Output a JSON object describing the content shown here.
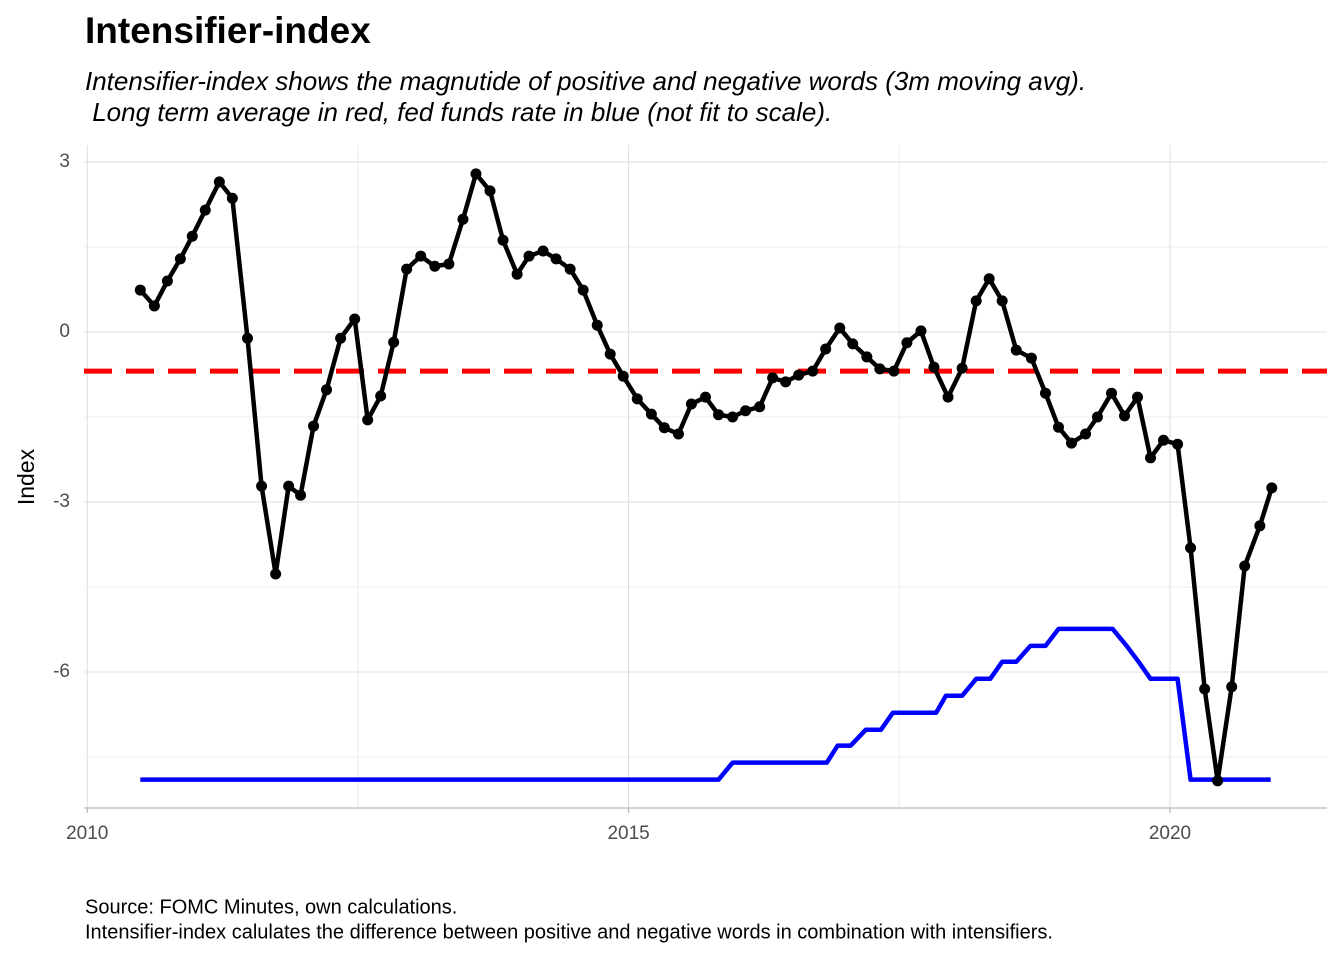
{
  "chart_data": {
    "type": "line",
    "title": "Intensifier-index",
    "subtitle": [
      "Intensifier-index shows the magnutide of positive and negative words (3m moving avg).",
      " Long term average in red, fed funds rate in blue (not fit to scale)."
    ],
    "y_label": "Index",
    "caption": [
      "Source: FOMC Minutes, own calculations.",
      "Intensifier-index calulates the difference between positive and negative words in combination with intensifiers."
    ],
    "xlim": [
      2009.97,
      2021.45
    ],
    "xticks": [
      2010,
      2015,
      2020
    ],
    "ylim": [
      -8.4,
      3.3
    ],
    "yticks": [
      -6,
      -3,
      0,
      3
    ],
    "grid": true,
    "hline": {
      "value": -0.69,
      "color": "#ff0000"
    },
    "series": [
      {
        "color": "#000000",
        "points": true,
        "x": [
          2010.49,
          2010.62,
          2010.74,
          2010.86,
          2010.97,
          2011.09,
          2011.22,
          2011.34,
          2011.48,
          2011.61,
          2011.74,
          2011.86,
          2011.97,
          2012.09,
          2012.21,
          2012.34,
          2012.47,
          2012.59,
          2012.71,
          2012.83,
          2012.95,
          2013.08,
          2013.21,
          2013.34,
          2013.47,
          2013.59,
          2013.72,
          2013.84,
          2013.97,
          2014.08,
          2014.21,
          2014.33,
          2014.46,
          2014.58,
          2014.71,
          2014.83,
          2014.95,
          2015.08,
          2015.21,
          2015.33,
          2015.46,
          2015.58,
          2015.71,
          2015.83,
          2015.96,
          2016.08,
          2016.21,
          2016.33,
          2016.45,
          2016.57,
          2016.7,
          2016.82,
          2016.95,
          2017.07,
          2017.2,
          2017.32,
          2017.45,
          2017.57,
          2017.7,
          2017.82,
          2017.95,
          2018.08,
          2018.21,
          2018.33,
          2018.45,
          2018.58,
          2018.72,
          2018.85,
          2018.97,
          2019.09,
          2019.22,
          2019.33,
          2019.46,
          2019.58,
          2019.7,
          2019.82,
          2019.94,
          2020.07,
          2020.19,
          2020.32,
          2020.44,
          2020.57,
          2020.69,
          2020.83,
          2020.94
        ],
        "values": [
          0.74,
          0.46,
          0.9,
          1.29,
          1.69,
          2.15,
          2.65,
          2.36,
          -0.11,
          -2.72,
          -4.27,
          -2.72,
          -2.88,
          -1.66,
          -1.02,
          -0.11,
          0.23,
          -1.55,
          -1.13,
          -0.18,
          1.11,
          1.34,
          1.16,
          1.2,
          1.99,
          2.79,
          2.49,
          1.62,
          1.02,
          1.34,
          1.43,
          1.29,
          1.11,
          0.74,
          0.12,
          -0.39,
          -0.78,
          -1.18,
          -1.45,
          -1.69,
          -1.8,
          -1.27,
          -1.15,
          -1.46,
          -1.5,
          -1.39,
          -1.32,
          -0.81,
          -0.88,
          -0.76,
          -0.69,
          -0.3,
          0.07,
          -0.21,
          -0.44,
          -0.65,
          -0.69,
          -0.19,
          0.02,
          -0.62,
          -1.15,
          -0.64,
          0.55,
          0.94,
          0.55,
          -0.32,
          -0.46,
          -1.08,
          -1.68,
          -1.96,
          -1.8,
          -1.5,
          -1.08,
          -1.48,
          -1.15,
          -2.22,
          -1.91,
          -1.98,
          -3.81,
          -6.3,
          -7.92,
          -6.26,
          -4.13,
          -3.42,
          -2.75
        ]
      },
      {
        "color": "#0000ff",
        "points": false,
        "x": [
          2010.49,
          2015.83,
          2015.96,
          2016.83,
          2016.93,
          2017.05,
          2017.19,
          2017.33,
          2017.44,
          2017.84,
          2017.93,
          2018.08,
          2018.21,
          2018.34,
          2018.45,
          2018.58,
          2018.71,
          2018.85,
          2018.97,
          2019.47,
          2019.6,
          2019.71,
          2019.82,
          2020.07,
          2020.19,
          2020.93
        ],
        "values": [
          -7.9,
          -7.9,
          -7.6,
          -7.6,
          -7.3,
          -7.3,
          -7.02,
          -7.02,
          -6.72,
          -6.72,
          -6.42,
          -6.42,
          -6.12,
          -6.12,
          -5.82,
          -5.82,
          -5.54,
          -5.54,
          -5.24,
          -5.24,
          -5.54,
          -5.82,
          -6.12,
          -6.12,
          -7.9,
          -7.9
        ]
      }
    ]
  }
}
